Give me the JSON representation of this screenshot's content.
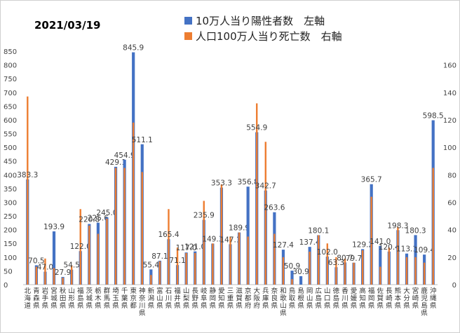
{
  "date_label": "2021/03/19",
  "chart_data": {
    "type": "bar",
    "categories": [
      "北海道",
      "青森県",
      "岩手県",
      "宮城県",
      "秋田県",
      "山形県",
      "福島県",
      "茨城県",
      "栃木県",
      "群馬県",
      "埼玉県",
      "千葉県",
      "東京都",
      "神奈川県",
      "新潟県",
      "富山県",
      "石川県",
      "福井県",
      "山梨県",
      "長野県",
      "岐阜県",
      "静岡県",
      "愛知県",
      "三重県",
      "滋賀県",
      "京都府",
      "大阪府",
      "兵庫県",
      "奈良県",
      "和歌山県",
      "鳥取県",
      "島根県",
      "岡山県",
      "広島県",
      "山口県",
      "徳島県",
      "香川県",
      "愛媛県",
      "高知県",
      "福岡県",
      "佐賀県",
      "長崎県",
      "熊本県",
      "大分県",
      "宮崎県",
      "鹿児島県",
      "沖縄県"
    ],
    "series": [
      {
        "name": "10万人当り陽性者数　左軸",
        "axis": "left",
        "color": "#4472C4",
        "values": [
          383.3,
          70.5,
          47.0,
          193.9,
          27.9,
          54.5,
          122.0,
          220.8,
          225.6,
          245.0,
          429.1,
          454.9,
          845.9,
          511.1,
          55.4,
          87.1,
          165.4,
          71.1,
          117.0,
          121.0,
          235.9,
          149.3,
          353.3,
          147.1,
          189.9,
          356.8,
          554.9,
          342.7,
          263.6,
          127.4,
          50.9,
          30.9,
          137.4,
          180.1,
          102.0,
          63.3,
          80.7,
          79.7,
          129.2,
          365.7,
          141.0,
          120.4,
          198.3,
          113.1,
          180.3,
          109.4,
          598.5
        ]
      },
      {
        "name": "人口100万人当り死亡数　右軸",
        "axis": "right",
        "color": "#ED7D31",
        "values": [
          137,
          13,
          19,
          12,
          5,
          14,
          55,
          43,
          37,
          48,
          85,
          85,
          118,
          82,
          7,
          17,
          55,
          27,
          23,
          23,
          61,
          30,
          73,
          35,
          38,
          35,
          132,
          104,
          37,
          20,
          4,
          0,
          24,
          36,
          30,
          20,
          19,
          16,
          25,
          64,
          13,
          27,
          42,
          20,
          20,
          16,
          85
        ]
      }
    ],
    "data_labels": [
      "383.3",
      "70.5",
      "47.0",
      "193.9",
      "27.9",
      "54.5",
      "122.0",
      "220.8",
      "225.6",
      "245.0",
      "429.1",
      "454.9",
      "845.9",
      "511.1",
      "55.4",
      "87.1",
      "165.4",
      "71.1",
      "117.0",
      "121.0",
      "235.9",
      "149.3",
      "353.3",
      "147.1",
      "189.9",
      "356.8",
      "554.9",
      "342.7",
      "263.6",
      "127.4",
      "50.9",
      "30.9",
      "137.4",
      "180.1",
      "102.0",
      "63.3",
      "80.7",
      "79.7",
      "129.2",
      "365.7",
      "141.0",
      "120.4",
      "198.3",
      "113.1",
      "180.3",
      "109.4",
      "598.5"
    ],
    "y_left": {
      "min": 0,
      "max": 850,
      "step": 50
    },
    "y_right": {
      "min": 0,
      "max": 170,
      "step": 20,
      "top_tick": 160
    },
    "xlabel": "",
    "ylabel": "",
    "grid": false,
    "legend_position": "top-center"
  }
}
